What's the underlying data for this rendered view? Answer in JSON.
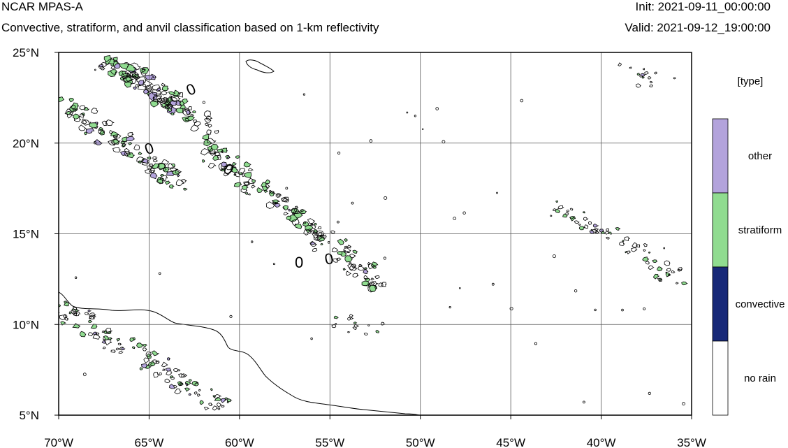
{
  "header": {
    "title": "NCAR MPAS-A",
    "subtitle": "Convective, stratiform, and anvil classification based on 1-km reflectivity",
    "init": "Init: 2021-09-11_00:00:00",
    "valid": "Valid: 2021-09-12_19:00:00"
  },
  "axes": {
    "x_ticks": [
      "70°W",
      "65°W",
      "60°W",
      "55°W",
      "50°W",
      "45°W",
      "40°W",
      "35°W"
    ],
    "y_ticks": [
      "25°N",
      "20°N",
      "15°N",
      "10°N",
      "5°N"
    ],
    "lon_range": [
      -70,
      -35
    ],
    "lat_range": [
      5,
      25
    ]
  },
  "legend": {
    "title": "[type]",
    "items": [
      {
        "label": "other",
        "color": "#b3a3dc"
      },
      {
        "label": "stratiform",
        "color": "#90dc90"
      },
      {
        "label": "convective",
        "color": "#172878"
      },
      {
        "label": "no rain",
        "color": "#ffffff"
      }
    ]
  },
  "contour_label": "0",
  "colors": {
    "other": "#b3a3dc",
    "stratiform": "#90dc90",
    "convective": "#172878",
    "gridline": "#555555",
    "coast": "#000000"
  }
}
